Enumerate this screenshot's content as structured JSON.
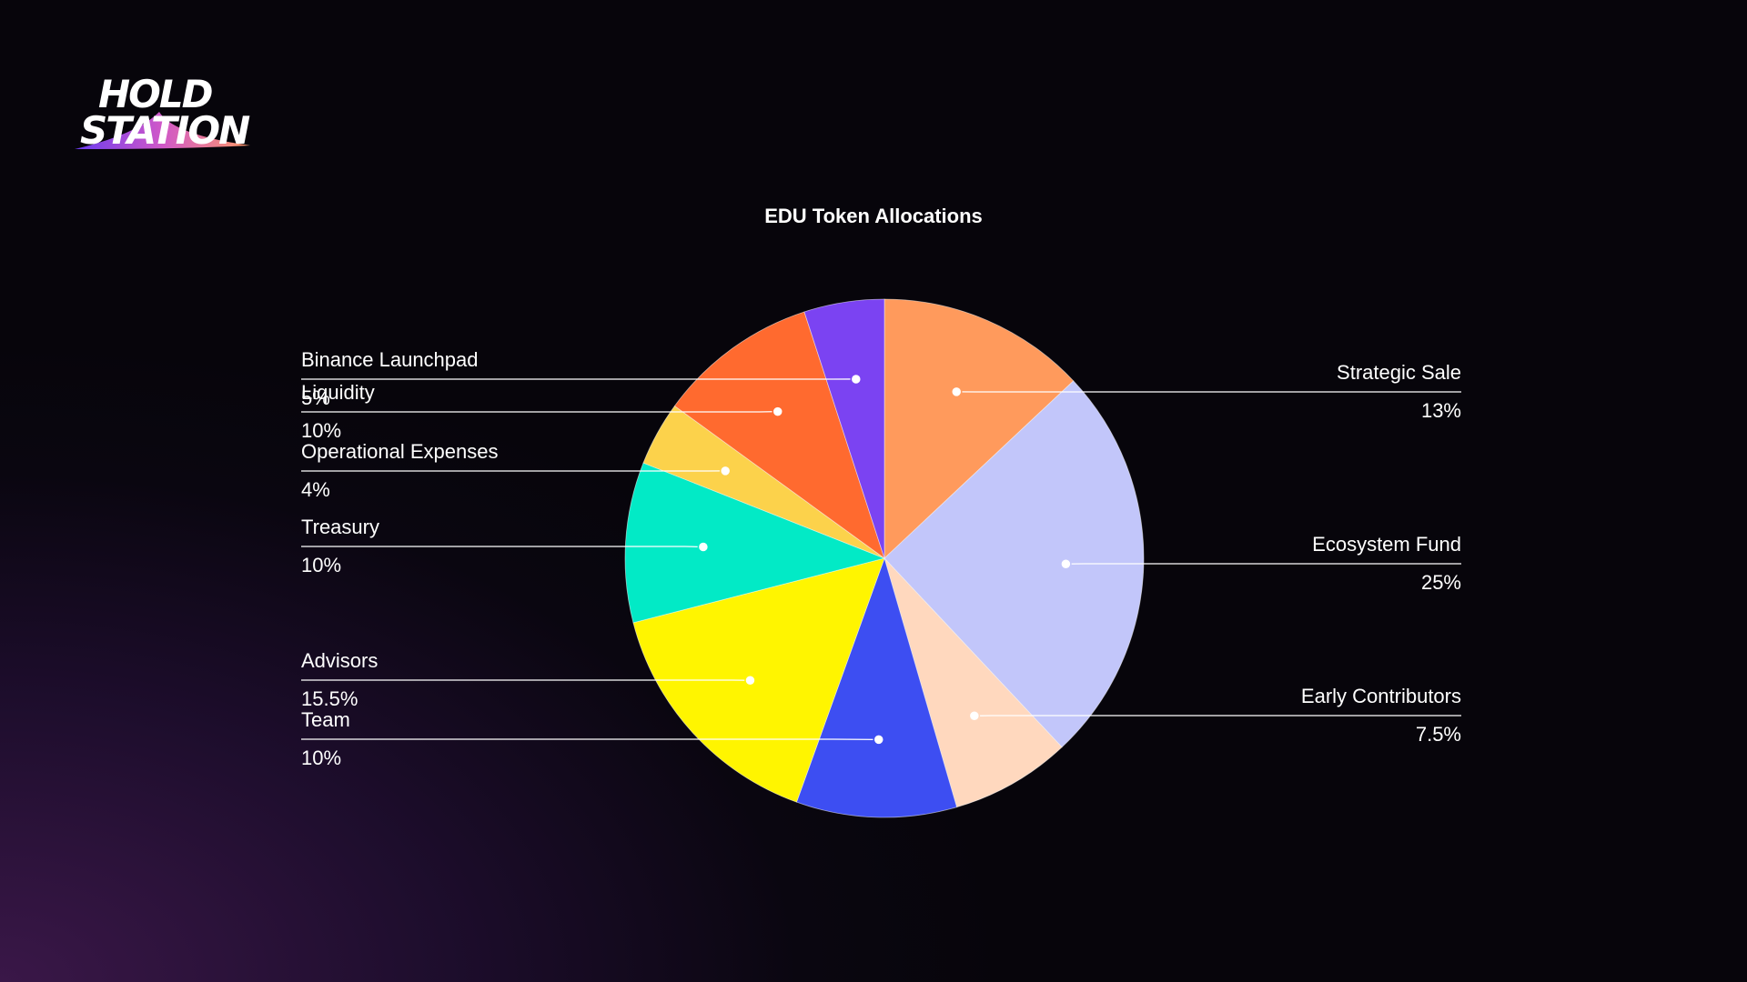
{
  "brand": {
    "logo_line1": "HOLD",
    "logo_line2": "STATION"
  },
  "chart_data": {
    "type": "pie",
    "title": "EDU Token Allocations",
    "start_angle_deg": 0,
    "direction": "clockwise",
    "slices": [
      {
        "name": "Strategic Sale",
        "value": 13,
        "label": "13%",
        "color": "#ff9a5c",
        "side": "right"
      },
      {
        "name": "Ecosystem Fund",
        "value": 25,
        "label": "25%",
        "color": "#c2c6fa",
        "side": "right"
      },
      {
        "name": "Early Contributors",
        "value": 7.5,
        "label": "7.5%",
        "color": "#ffd8be",
        "side": "right"
      },
      {
        "name": "Team",
        "value": 10,
        "label": "10%",
        "color": "#3d4ef2",
        "side": "left"
      },
      {
        "name": "Advisors",
        "value": 15.5,
        "label": "15.5%",
        "color": "#fff500",
        "side": "left"
      },
      {
        "name": "Treasury",
        "value": 10,
        "label": "10%",
        "color": "#02eac6",
        "side": "left"
      },
      {
        "name": "Operational Expenses",
        "value": 4,
        "label": "4%",
        "color": "#fcd24b",
        "side": "left"
      },
      {
        "name": "Liquidity",
        "value": 10,
        "label": "10%",
        "color": "#ff6a2f",
        "side": "left"
      },
      {
        "name": "Binance Launchpad",
        "value": 5,
        "label": "5%",
        "color": "#7b43f2",
        "side": "left"
      }
    ]
  }
}
